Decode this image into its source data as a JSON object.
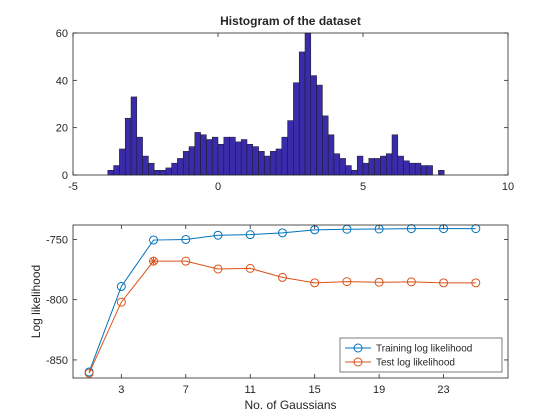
{
  "chart_data": [
    {
      "type": "bar",
      "subtype": "histogram",
      "title": "Histogram of the dataset",
      "xlabel": "",
      "ylabel": "",
      "xlim": [
        -5,
        10
      ],
      "ylim": [
        0,
        60
      ],
      "xticks": [
        -5,
        0,
        5,
        10
      ],
      "yticks": [
        0,
        20,
        40,
        60
      ],
      "bar_color": "#3A2BAA",
      "bin_width": 0.2,
      "bins": [
        [
          -3.8,
          2
        ],
        [
          -3.6,
          4
        ],
        [
          -3.4,
          11
        ],
        [
          -3.2,
          24
        ],
        [
          -3.0,
          33
        ],
        [
          -2.8,
          16
        ],
        [
          -2.6,
          8
        ],
        [
          -2.4,
          5
        ],
        [
          -2.2,
          2
        ],
        [
          -2.0,
          2
        ],
        [
          -1.8,
          3
        ],
        [
          -1.6,
          5
        ],
        [
          -1.4,
          7
        ],
        [
          -1.2,
          10
        ],
        [
          -1.0,
          12
        ],
        [
          -0.8,
          18
        ],
        [
          -0.6,
          17
        ],
        [
          -0.4,
          15
        ],
        [
          -0.2,
          16
        ],
        [
          0.0,
          13
        ],
        [
          0.2,
          16
        ],
        [
          0.4,
          16
        ],
        [
          0.6,
          14
        ],
        [
          0.8,
          15
        ],
        [
          1.0,
          13
        ],
        [
          1.2,
          12
        ],
        [
          1.4,
          10
        ],
        [
          1.6,
          8
        ],
        [
          1.8,
          10
        ],
        [
          2.0,
          11
        ],
        [
          2.2,
          16
        ],
        [
          2.4,
          23
        ],
        [
          2.6,
          39
        ],
        [
          2.8,
          52
        ],
        [
          3.0,
          60
        ],
        [
          3.2,
          42
        ],
        [
          3.4,
          38
        ],
        [
          3.6,
          25
        ],
        [
          3.8,
          17
        ],
        [
          4.0,
          9
        ],
        [
          4.2,
          7
        ],
        [
          4.4,
          4
        ],
        [
          4.6,
          2
        ],
        [
          4.8,
          8
        ],
        [
          5.0,
          5
        ],
        [
          5.2,
          7
        ],
        [
          5.4,
          7
        ],
        [
          5.6,
          8
        ],
        [
          5.8,
          9
        ],
        [
          6.0,
          17
        ],
        [
          6.2,
          8
        ],
        [
          6.4,
          6
        ],
        [
          6.6,
          5
        ],
        [
          6.8,
          5
        ],
        [
          7.0,
          4
        ],
        [
          7.2,
          4
        ],
        [
          7.6,
          2
        ]
      ]
    },
    {
      "type": "line",
      "title": "",
      "xlabel": "No. of Gaussians",
      "ylabel": "Log likelihood",
      "xlim": [
        0,
        27
      ],
      "ylim": [
        -865,
        -738
      ],
      "xticks": [
        3,
        7,
        11,
        15,
        19,
        23
      ],
      "yticks": [
        -850,
        -800,
        -750
      ],
      "legend_position": "bottom-right",
      "x": [
        1,
        3,
        5,
        7,
        9,
        11,
        13,
        15,
        17,
        19,
        21,
        23,
        25
      ],
      "series": [
        {
          "name": "Training log likelihood",
          "color": "#0072BD",
          "values": [
            -860,
            -789,
            -750.5,
            -750,
            -746.5,
            -746,
            -744.5,
            -742,
            -741.5,
            -741.3,
            -741,
            -741,
            -741
          ]
        },
        {
          "name": "Test log likelihood",
          "color": "#D95319",
          "values": [
            -861,
            -802,
            -768,
            -768,
            -774.5,
            -774,
            -781.5,
            -786,
            -785,
            -785.5,
            -785.2,
            -786,
            -786
          ]
        }
      ],
      "annotations": [
        {
          "marker": "asterisk",
          "x": 5,
          "y": -768,
          "color": "#D95319"
        }
      ]
    }
  ]
}
